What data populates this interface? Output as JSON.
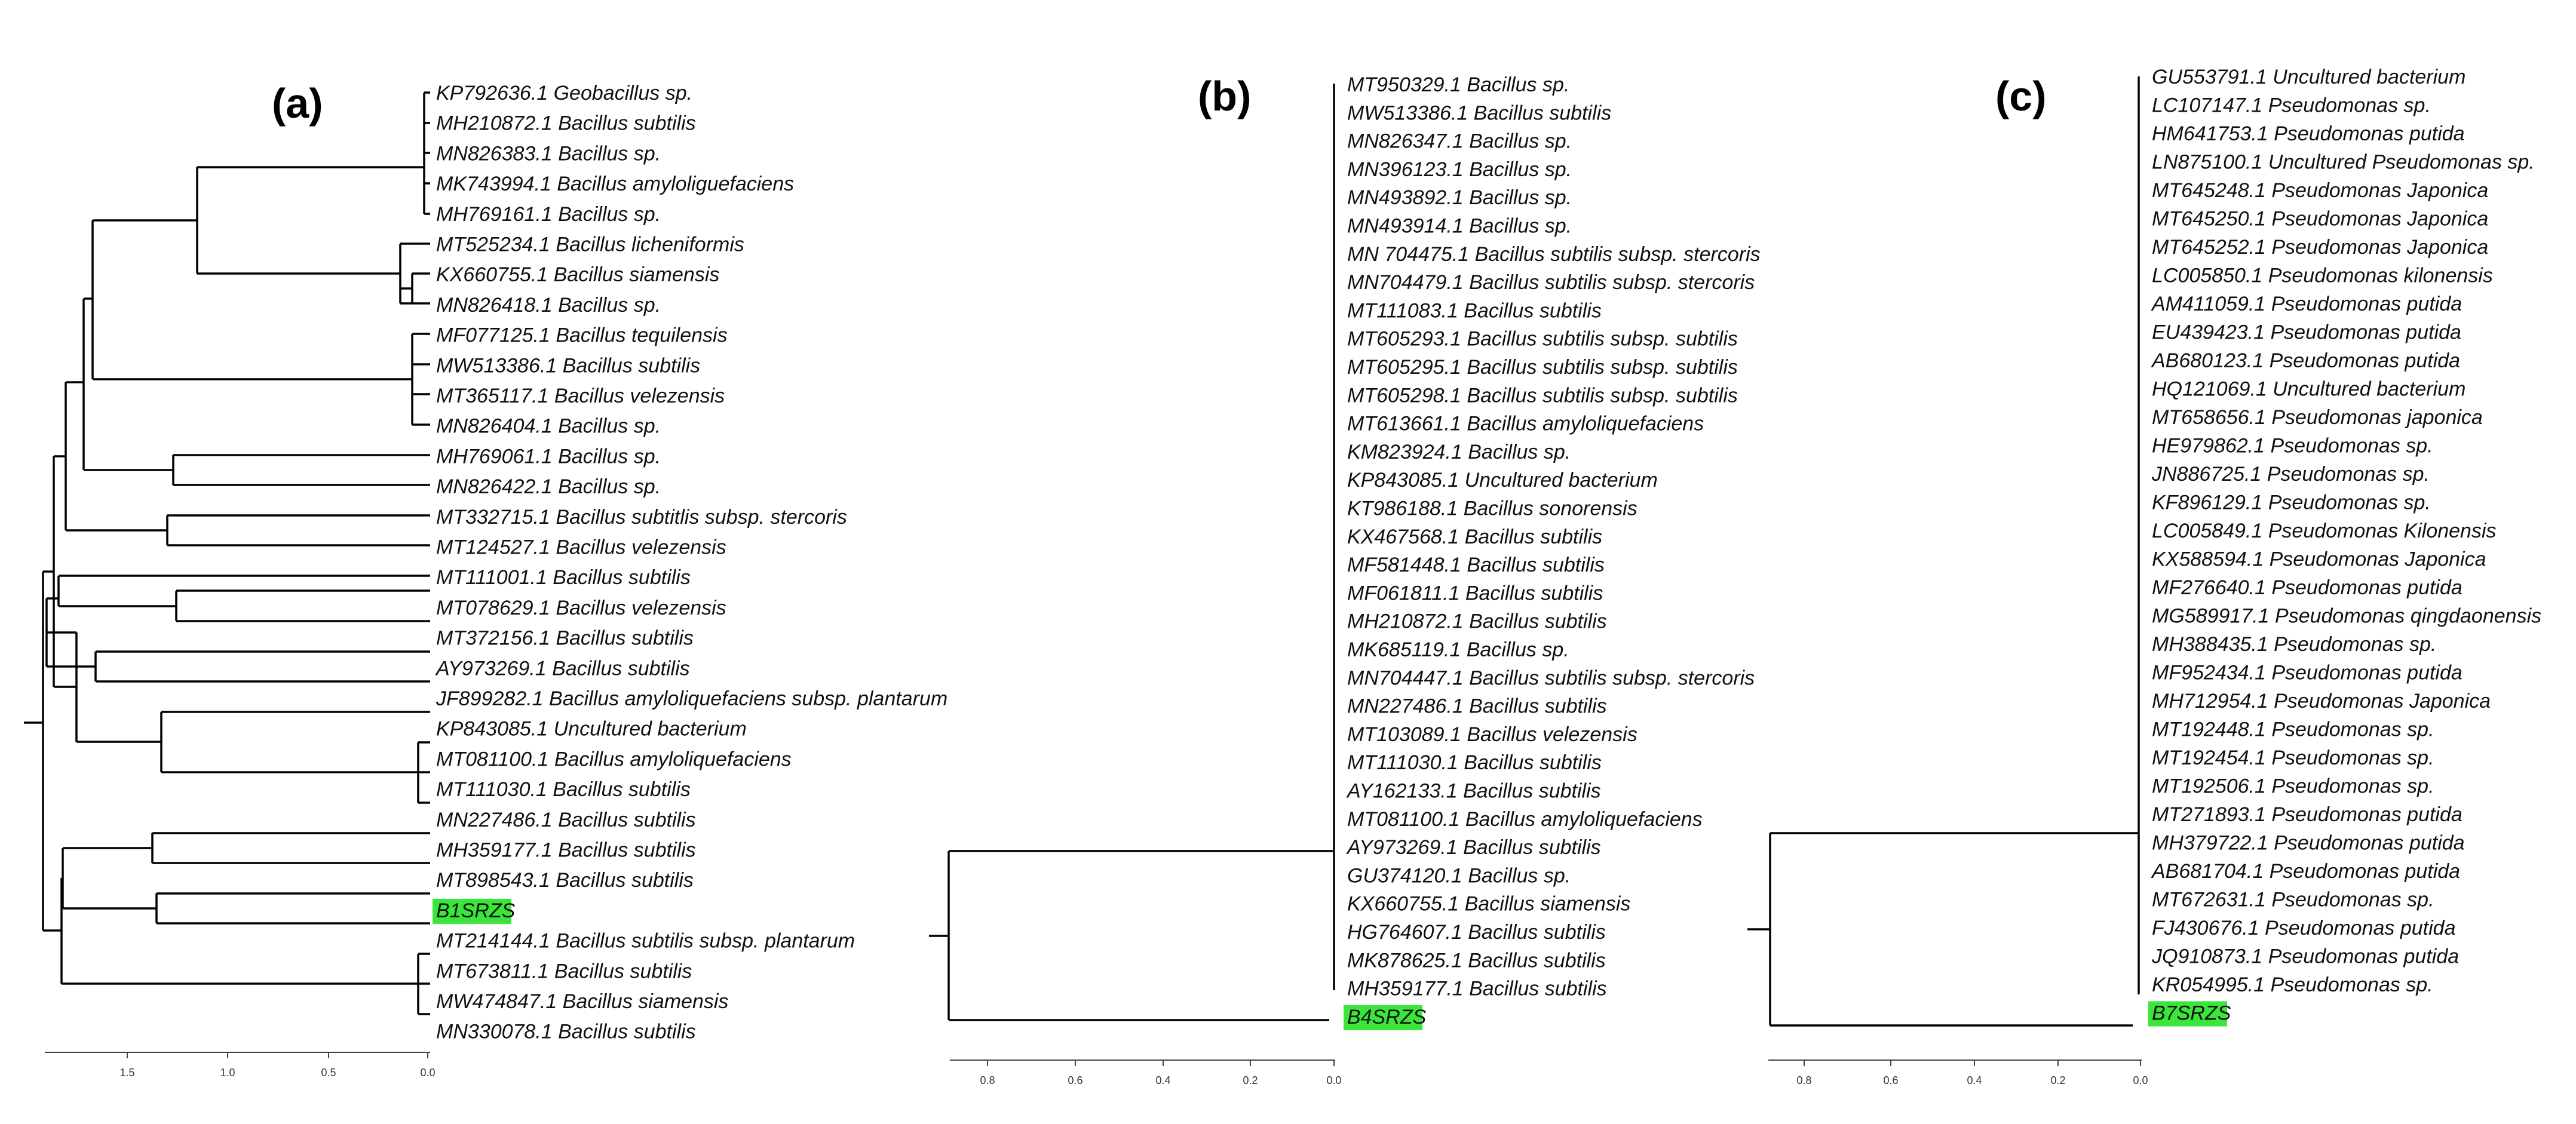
{
  "panels": [
    {
      "label": "(a)",
      "axis_ticks": [
        "1.5",
        "1.0",
        "0.5",
        "0.0"
      ],
      "leaves": [
        "KP792636.1 Geobacillus sp.",
        "MH210872.1 Bacillus subtilis",
        "MN826383.1 Bacillus sp.",
        "MK743994.1 Bacillus amyloliguefaciens",
        "MH769161.1 Bacillus sp.",
        "MT525234.1 Bacillus licheniformis",
        "KX660755.1 Bacillus siamensis",
        "MN826418.1 Bacillus sp.",
        "MF077125.1 Bacillus tequilensis",
        "MW513386.1 Bacillus subtilis",
        "MT365117.1 Bacillus velezensis",
        "MN826404.1 Bacillus sp.",
        "MH769061.1 Bacillus sp.",
        "MN826422.1 Bacillus sp.",
        "MT332715.1 Bacillus subtitlis subsp. stercoris",
        "MT124527.1 Bacillus velezensis",
        "MT111001.1 Bacillus subtilis",
        "MT078629.1 Bacillus velezensis",
        "MT372156.1 Bacillus subtilis",
        "AY973269.1 Bacillus subtilis",
        "JF899282.1 Bacillus amyloliquefaciens subsp. plantarum",
        "KP843085.1 Uncultured bacterium",
        "MT081100.1 Bacillus amyloliquefaciens",
        "MT111030.1 Bacillus subtilis",
        "MN227486.1 Bacillus subtilis",
        "MH359177.1 Bacillus subtilis",
        "MT898543.1 Bacillus subtilis",
        "B1SRZS",
        "MT214144.1 Bacillus subtilis subsp. plantarum",
        "MT673811.1 Bacillus subtilis",
        "MW474847.1 Bacillus siamensis",
        "MN330078.1 Bacillus subtilis"
      ],
      "highlight": "B1SRZS"
    },
    {
      "label": "(b)",
      "axis_ticks": [
        "0.8",
        "0.6",
        "0.4",
        "0.2",
        "0.0"
      ],
      "leaves": [
        "MT950329.1 Bacillus sp.",
        "MW513386.1 Bacillus subtilis",
        "MN826347.1 Bacillus sp.",
        "MN396123.1 Bacillus sp.",
        "MN493892.1 Bacillus sp.",
        "MN493914.1 Bacillus sp.",
        "MN 704475.1 Bacillus subtilis subsp. stercoris",
        "MN704479.1 Bacillus subtilis subsp. stercoris",
        "MT111083.1 Bacillus subtilis",
        "MT605293.1 Bacillus subtilis subsp. subtilis",
        "MT605295.1 Bacillus subtilis subsp. subtilis",
        "MT605298.1 Bacillus subtilis subsp. subtilis",
        "MT613661.1 Bacillus amyloliquefaciens",
        "KM823924.1 Bacillus sp.",
        "KP843085.1 Uncultured bacterium",
        "KT986188.1 Bacillus sonorensis",
        "KX467568.1 Bacillus subtilis",
        "MF581448.1 Bacillus subtilis",
        "MF061811.1 Bacillus subtilis",
        "MH210872.1 Bacillus subtilis",
        "MK685119.1 Bacillus sp.",
        "MN704447.1 Bacillus subtilis subsp. stercoris",
        "MN227486.1 Bacillus subtilis",
        "MT103089.1 Bacillus velezensis",
        "MT111030.1 Bacillus subtilis",
        "AY162133.1 Bacillus subtilis",
        "MT081100.1 Bacillus amyloliquefaciens",
        "AY973269.1 Bacillus subtilis",
        "GU374120.1 Bacillus sp.",
        "KX660755.1 Bacillus siamensis",
        "HG764607.1 Bacillus subtilis",
        "MK878625.1 Bacillus subtilis",
        "MH359177.1 Bacillus subtilis",
        "B4SRZS"
      ],
      "highlight": "B4SRZS"
    },
    {
      "label": "(c)",
      "axis_ticks": [
        "0.8",
        "0.6",
        "0.4",
        "0.2",
        "0.0"
      ],
      "leaves": [
        "GU553791.1 Uncultured bacterium",
        "LC107147.1 Pseudomonas sp.",
        "HM641753.1 Pseudomonas putida",
        "LN875100.1 Uncultured Pseudomonas sp.",
        "MT645248.1 Pseudomonas Japonica",
        "MT645250.1 Pseudomonas Japonica",
        "MT645252.1 Pseudomonas Japonica",
        "LC005850.1 Pseudomonas kilonensis",
        "AM411059.1 Pseudomonas putida",
        "EU439423.1 Pseudomonas putida",
        "AB680123.1 Pseudomonas putida",
        "HQ121069.1 Uncultured bacterium",
        "MT658656.1 Pseudomonas japonica",
        "HE979862.1 Pseudomonas sp.",
        "JN886725.1 Pseudomonas sp.",
        "KF896129.1 Pseudomonas sp.",
        "LC005849.1 Pseudomonas Kilonensis",
        "KX588594.1 Pseudomonas Japonica",
        "MF276640.1 Pseudomonas putida",
        "MG589917.1 Pseudomonas qingdaonensis",
        "MH388435.1 Pseudomonas sp.",
        "MF952434.1 Pseudomonas putida",
        "MH712954.1 Pseudomonas Japonica",
        "MT192448.1 Pseudomonas sp.",
        "MT192454.1 Pseudomonas sp.",
        "MT192506.1 Pseudomonas sp.",
        "MT271893.1 Pseudomonas putida",
        "MH379722.1 Pseudomonas putida",
        "AB681704.1 Pseudomonas putida",
        "MT672631.1 Pseudomonas sp.",
        "FJ430676.1 Pseudomonas putida",
        "JQ910873.1 Pseudomonas putida",
        "KR054995.1 Pseudomonas sp.",
        "B7SRZS"
      ],
      "highlight": "B7SRZS"
    }
  ],
  "colors": {
    "highlight": "#39e639",
    "branch": "#000000"
  }
}
